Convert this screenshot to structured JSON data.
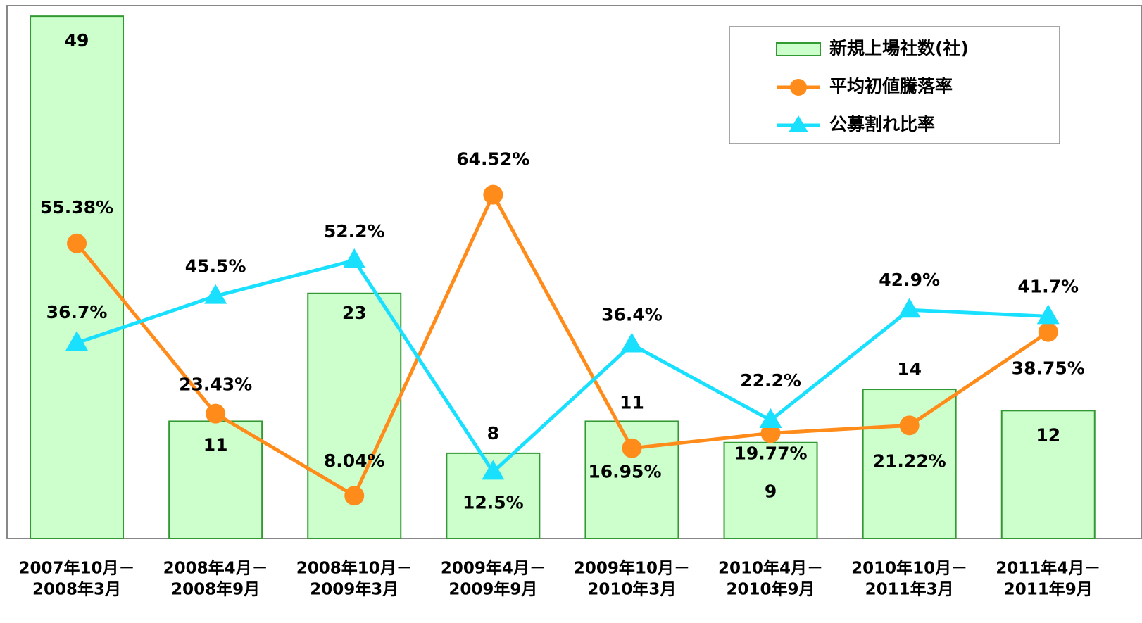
{
  "chart_data": {
    "type": "bar",
    "categories": [
      [
        "2007年10月－",
        "2008年3月"
      ],
      [
        "2008年4月－",
        "2008年9月"
      ],
      [
        "2008年10月－",
        "2009年3月"
      ],
      [
        "2009年4月－",
        "2009年9月"
      ],
      [
        "2009年10月－",
        "2010年3月"
      ],
      [
        "2010年4月－",
        "2010年9月"
      ],
      [
        "2010年10月－",
        "2011年3月"
      ],
      [
        "2011年4月－",
        "2011年9月"
      ]
    ],
    "ylim": [
      0,
      50
    ],
    "y2lim": [
      0,
      100
    ],
    "legend": "upper right",
    "series": [
      {
        "name": "新規上場社数(社)",
        "type": "bar",
        "color": "#ccffcc",
        "edge_color": "#339933",
        "values": [
          49,
          11,
          23,
          8,
          11,
          9,
          14,
          12
        ]
      },
      {
        "name": "平均初値騰落率",
        "type": "line",
        "axis": "y2",
        "marker": "circle",
        "color": "#ff8c1a",
        "values": [
          55.38,
          23.43,
          8.04,
          64.52,
          16.95,
          19.77,
          21.22,
          38.75
        ],
        "value_labels": [
          "55.38%",
          "23.43%",
          "8.04%",
          "64.52%",
          "16.95%",
          "19.77%",
          "21.22%",
          "38.75%"
        ]
      },
      {
        "name": "公募割れ比率",
        "type": "line",
        "axis": "y2",
        "marker": "triangle",
        "color": "#1ae0ff",
        "values": [
          36.7,
          45.5,
          52.2,
          12.5,
          36.4,
          22.2,
          42.9,
          41.7
        ],
        "value_labels": [
          "36.7%",
          "45.5%",
          "52.2%",
          "12.5%",
          "36.4%",
          "22.2%",
          "42.9%",
          "41.7%"
        ]
      }
    ]
  }
}
